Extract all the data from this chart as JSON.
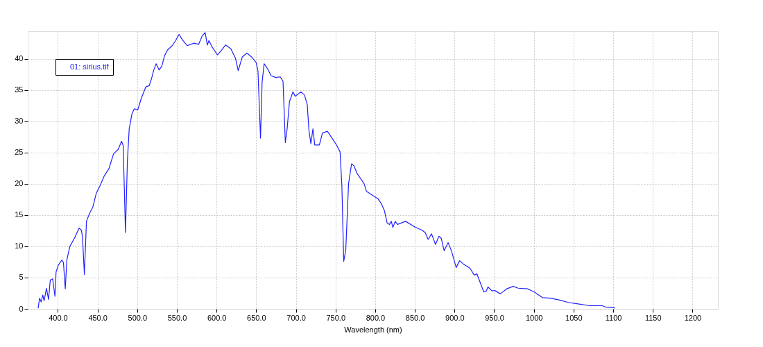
{
  "chart_data": {
    "type": "line",
    "xlabel": "Wavelength (nm)",
    "xlim": [
      362,
      1232
    ],
    "ylim": [
      0,
      44.4
    ],
    "xticks": [
      {
        "value": 400,
        "label": "400.0"
      },
      {
        "value": 450,
        "label": "450.0"
      },
      {
        "value": 500,
        "label": "500.0"
      },
      {
        "value": 550,
        "label": "550.0"
      },
      {
        "value": 600,
        "label": "600.0"
      },
      {
        "value": 650,
        "label": "650.0"
      },
      {
        "value": 700,
        "label": "700.0"
      },
      {
        "value": 750,
        "label": "750.0"
      },
      {
        "value": 800,
        "label": "800.0"
      },
      {
        "value": 850,
        "label": "850.0"
      },
      {
        "value": 900,
        "label": "900.0"
      },
      {
        "value": 950,
        "label": "950.0"
      },
      1000,
      1050,
      1100,
      1150,
      1200
    ],
    "yticks": [
      0,
      5,
      10,
      15,
      20,
      25,
      30,
      35,
      40
    ],
    "grid": true,
    "legend": "top left",
    "line_style": "solid",
    "marker": "none",
    "series": [
      {
        "name": "01: sirius.tif",
        "color": "#2020ff",
        "x": [
          375.1,
          376.9,
          378.9,
          380.9,
          382.6,
          385.6,
          388.2,
          390.4,
          393.4,
          396.3,
          397.7,
          400.6,
          405.0,
          407.0,
          409.3,
          411.3,
          415.1,
          420.9,
          426.7,
          429.6,
          431.0,
          433.4,
          436.0,
          439.7,
          444.1,
          448.4,
          452.8,
          458.6,
          464.3,
          470.2,
          476.0,
          480.3,
          482.3,
          485.2,
          487.6,
          489.9,
          493.4,
          496.3,
          500.6,
          505.0,
          510.8,
          515.1,
          518.0,
          520.9,
          523.8,
          527.6,
          531.0,
          534.5,
          538.3,
          544.1,
          548.4,
          552.8,
          557.1,
          563.0,
          571.7,
          577.4,
          581.7,
          585.6,
          588.4,
          590.4,
          594.8,
          601.2,
          606.4,
          611.3,
          618.0,
          623.8,
          627.3,
          632.5,
          638.3,
          644.1,
          649.9,
          652.2,
          655.4,
          657.4,
          660.0,
          664.3,
          668.7,
          674.5,
          680.3,
          683.8,
          686.7,
          689.0,
          691.9,
          696.3,
          699.1,
          706.4,
          710.8,
          714.3,
          716.5,
          718.9,
          721.5,
          723.8,
          729.6,
          733.4,
          739.7,
          745.6,
          751.3,
          755.7,
          758.0,
          760.3,
          762.9,
          766.4,
          770.2,
          773.1,
          777.4,
          786.1,
          789.0,
          803.5,
          807.8,
          811.6,
          815.1,
          818.0,
          820.3,
          822.3,
          825.2,
          828.2,
          838.3,
          849.9,
          858.6,
          863.0,
          866.7,
          871.0,
          876.0,
          880.3,
          883.2,
          886.9,
          891.9,
          896.3,
          902.1,
          906.4,
          910.8,
          919.5,
          924.8,
          928.2,
          932.6,
          936.9,
          939.8,
          942.1,
          947.0,
          951.3,
          957.7,
          965.8,
          973.9,
          980.3,
          991.9,
          1000.6,
          1010.8,
          1020.9,
          1032.5,
          1044.1,
          1055.7,
          1070.2,
          1086.1,
          1090.4,
          1100.6,
          1102.1
        ],
        "values": [
          0.1,
          1.7,
          1.1,
          2.2,
          1.3,
          3.3,
          1.5,
          4.6,
          4.8,
          2.0,
          5.9,
          7.0,
          7.8,
          7.4,
          3.2,
          7.8,
          10.0,
          11.3,
          12.9,
          12.6,
          11.5,
          5.5,
          14.0,
          15.2,
          16.3,
          18.5,
          19.6,
          21.3,
          22.4,
          24.8,
          25.5,
          26.8,
          26.1,
          12.2,
          23.6,
          28.8,
          31.2,
          32.0,
          31.8,
          33.6,
          35.5,
          35.7,
          36.8,
          38.2,
          39.2,
          38.2,
          38.8,
          40.5,
          41.4,
          42.1,
          42.9,
          43.9,
          43.0,
          42.1,
          42.5,
          42.3,
          43.6,
          44.2,
          42.2,
          42.9,
          41.8,
          40.6,
          41.4,
          42.2,
          41.6,
          40.1,
          38.1,
          40.3,
          40.9,
          40.3,
          39.4,
          38.1,
          27.3,
          36.2,
          39.2,
          38.4,
          37.3,
          37.0,
          37.1,
          36.4,
          26.6,
          28.8,
          33.1,
          34.7,
          34.0,
          34.7,
          34.2,
          32.7,
          28.5,
          26.4,
          28.8,
          26.2,
          26.2,
          28.1,
          28.4,
          27.3,
          26.2,
          25.1,
          19.6,
          7.6,
          9.4,
          20.0,
          23.2,
          22.9,
          21.6,
          20.0,
          18.8,
          17.6,
          16.8,
          15.7,
          13.7,
          13.5,
          14.0,
          13.0,
          14.0,
          13.5,
          14.0,
          13.1,
          12.6,
          12.2,
          11.1,
          12.0,
          10.3,
          11.6,
          11.3,
          9.3,
          10.6,
          9.2,
          6.6,
          7.7,
          7.2,
          6.5,
          5.4,
          5.6,
          4.1,
          2.7,
          2.8,
          3.5,
          2.9,
          2.9,
          2.4,
          3.2,
          3.6,
          3.3,
          3.2,
          2.7,
          1.8,
          1.7,
          1.4,
          1.0,
          0.8,
          0.5,
          0.5,
          0.3,
          0.2,
          0.1
        ]
      }
    ]
  }
}
